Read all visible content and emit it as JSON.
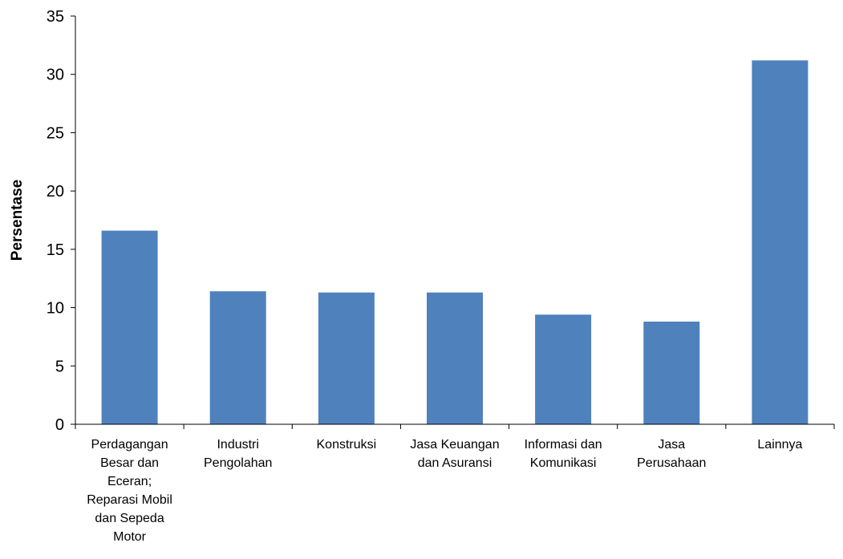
{
  "chart_data": {
    "type": "bar",
    "title": "",
    "xlabel": "",
    "ylabel": "Persentase",
    "ylim": [
      0,
      35
    ],
    "yticks": [
      0,
      5,
      10,
      15,
      20,
      25,
      30,
      35
    ],
    "grid": false,
    "legend": "none",
    "categories": [
      "Perdagangan Besar dan Eceran; Reparasi Mobil dan Sepeda Motor",
      "Industri Pengolahan",
      "Konstruksi",
      "Jasa Keuangan dan Asuransi",
      "Informasi dan Komunikasi",
      "Jasa Perusahaan",
      "Lainnya"
    ],
    "category_lines": [
      [
        "Perdagangan",
        "Besar dan",
        "Eceran;",
        "Reparasi Mobil",
        "dan Sepeda",
        "Motor"
      ],
      [
        "Industri",
        "Pengolahan"
      ],
      [
        "Konstruksi"
      ],
      [
        "Jasa Keuangan",
        "dan Asuransi"
      ],
      [
        "Informasi dan",
        "Komunikasi"
      ],
      [
        "Jasa",
        "Perusahaan"
      ],
      [
        "Lainnya"
      ]
    ],
    "values": [
      16.6,
      11.4,
      11.3,
      11.3,
      9.4,
      8.8,
      31.2
    ],
    "bar_color": "#4F81BD",
    "axis_color": "#000000"
  }
}
